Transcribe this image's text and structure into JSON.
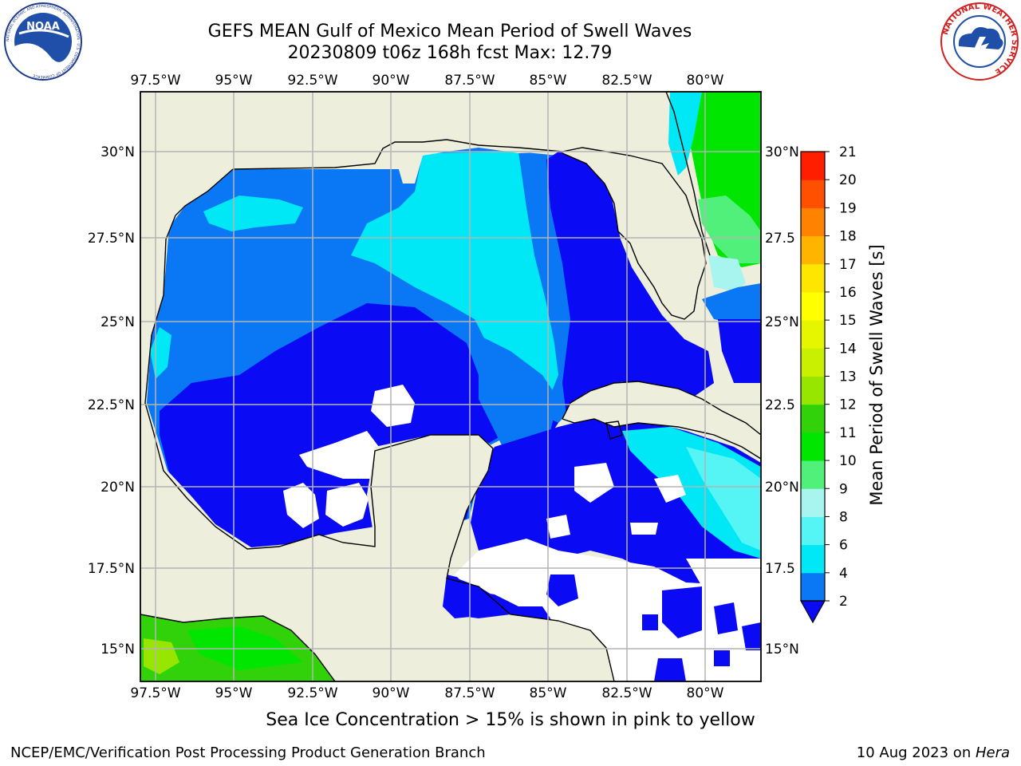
{
  "header": {
    "title_line1": "GEFS MEAN Gulf of Mexico Mean Period of Swell Waves",
    "title_line2": "20230809 t06z 168h fcst   Max: 12.79"
  },
  "logos": {
    "left": "NOAA",
    "left_ring_text": "NATIONAL OCEANIC AND ATMOSPHERIC ADMINISTRATION · U.S. DEPARTMENT OF COMMERCE",
    "right_ring_text": "NATIONAL WEATHER SERVICE"
  },
  "map": {
    "lon_ticks": [
      "97.5°W",
      "95°W",
      "92.5°W",
      "90°W",
      "87.5°W",
      "85°W",
      "82.5°W",
      "80°W"
    ],
    "lat_ticks_left": [
      "30°N",
      "27.5°N",
      "25°N",
      "22.5°N",
      "20°N",
      "17.5°N",
      "15°N"
    ],
    "lat_ticks_right": [
      "30°N",
      "27.5",
      "25°N",
      "22.5",
      "20°N",
      "17.5",
      "15°N"
    ],
    "land_color": "#eeeedc",
    "missing_color": "#ffffff"
  },
  "colorbar": {
    "label": "Mean Period of Swell Waves [s]",
    "ticks": [
      "2",
      "4",
      "6",
      "8",
      "9",
      "10",
      "11",
      "12",
      "13",
      "14",
      "15",
      "16",
      "17",
      "18",
      "19",
      "20",
      "21"
    ],
    "colors": [
      "#0a0af5",
      "#0a78f5",
      "#00e8f5",
      "#55f5f5",
      "#a8f5f0",
      "#50f07a",
      "#00e600",
      "#32d20a",
      "#96e600",
      "#c8f000",
      "#e6f500",
      "#ffff00",
      "#ffe600",
      "#ffb400",
      "#ff8200",
      "#ff5000",
      "#ff1e00",
      "#ff0000"
    ]
  },
  "note": "Sea Ice Concentration > 15% is shown in pink to yellow",
  "footer": {
    "left": "NCEP/EMC/Verification Post Processing Product Generation Branch",
    "date": "10 Aug 2023 on ",
    "host": "Hera"
  }
}
